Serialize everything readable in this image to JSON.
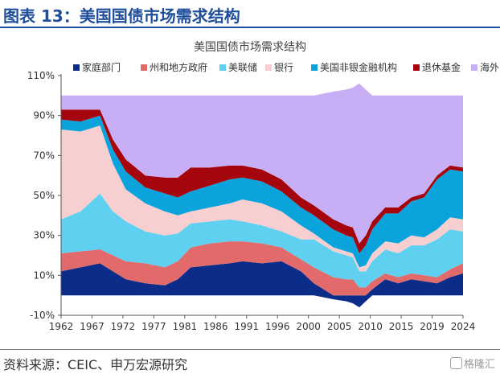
{
  "header": {
    "title": "图表 13：美国国债市场需求结构"
  },
  "footer": {
    "source": "资料来源：CEIC、申万宏源研究",
    "watermark": "格隆汇"
  },
  "chart_data": {
    "type": "area",
    "title": "美国国债市场需求结构",
    "xlabel": "",
    "ylabel": "",
    "ylim": [
      -10,
      110
    ],
    "y_ticks": [
      -10,
      10,
      30,
      50,
      70,
      90,
      110
    ],
    "y_tick_labels": [
      "-10%",
      "10%",
      "30%",
      "50%",
      "70%",
      "90%",
      "110%"
    ],
    "x_tick_labels": [
      "1962",
      "1967",
      "1972",
      "1977",
      "1981",
      "1986",
      "1991",
      "1996",
      "2000",
      "2005",
      "2010",
      "2015",
      "2019",
      "2024"
    ],
    "legend_position": "top",
    "x": [
      1962,
      1965,
      1968,
      1970,
      1972,
      1975,
      1978,
      1980,
      1982,
      1985,
      1988,
      1990,
      1993,
      1996,
      1999,
      2001,
      2004,
      2006,
      2007,
      2008,
      2009,
      2010,
      2012,
      2014,
      2016,
      2018,
      2020,
      2022,
      2024
    ],
    "series": [
      {
        "name": "家庭部门",
        "color": "#0c2c8a",
        "values": [
          12,
          14,
          16,
          12,
          8,
          6,
          5,
          8,
          14,
          15,
          16,
          17,
          16,
          17,
          12,
          6,
          -2,
          -3,
          -4,
          -6,
          -3,
          3,
          8,
          6,
          8,
          7,
          6,
          9,
          11
        ]
      },
      {
        "name": "州和地方政府",
        "color": "#e26a6a",
        "values": [
          9,
          8,
          7,
          8,
          9,
          10,
          9,
          9,
          10,
          11,
          11,
          10,
          10,
          7,
          6,
          8,
          9,
          8,
          8,
          4,
          4,
          4,
          3,
          3,
          3,
          3,
          3,
          4,
          5
        ]
      },
      {
        "name": "美联储",
        "color": "#5fd0f0",
        "values": [
          17,
          20,
          28,
          22,
          20,
          16,
          16,
          14,
          12,
          11,
          11,
          10,
          9,
          8,
          10,
          14,
          13,
          12,
          11,
          8,
          8,
          10,
          12,
          12,
          14,
          15,
          19,
          20,
          16
        ]
      },
      {
        "name": "银行",
        "color": "#f7cfd0",
        "values": [
          45,
          40,
          34,
          24,
          16,
          14,
          12,
          9,
          6,
          7,
          8,
          11,
          11,
          10,
          7,
          3,
          2,
          2,
          2,
          2,
          3,
          4,
          4,
          5,
          5,
          4,
          5,
          6,
          6
        ]
      },
      {
        "name": "美国非银金融机构",
        "color": "#0aa3dc",
        "values": [
          5,
          5,
          5,
          7,
          9,
          8,
          9,
          9,
          10,
          11,
          12,
          11,
          11,
          10,
          9,
          9,
          9,
          8,
          8,
          7,
          10,
          12,
          14,
          15,
          17,
          20,
          25,
          24,
          24
        ]
      },
      {
        "name": "退休基金",
        "color": "#a5050d",
        "values": [
          5,
          6,
          3,
          5,
          6,
          6,
          8,
          10,
          12,
          9,
          7,
          6,
          6,
          6,
          5,
          5,
          5,
          5,
          5,
          5,
          5,
          4,
          3,
          3,
          2,
          2,
          2,
          2,
          2
        ]
      },
      {
        "name": "海外",
        "color": "#c8aef5",
        "values": [
          7,
          7,
          7,
          22,
          32,
          40,
          41,
          41,
          36,
          36,
          35,
          35,
          37,
          42,
          51,
          55,
          64,
          68,
          70,
          80,
          73,
          63,
          56,
          56,
          51,
          49,
          40,
          35,
          36
        ]
      }
    ]
  }
}
